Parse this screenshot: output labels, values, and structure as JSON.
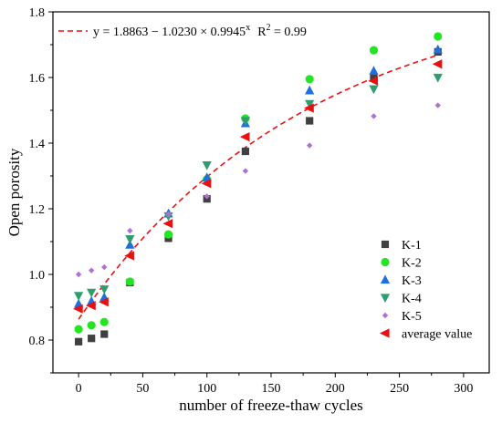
{
  "chart_data": {
    "type": "scatter",
    "xlabel": "number of freeze-thaw cycles",
    "ylabel": "Open porosity",
    "xlim": [
      -20,
      320
    ],
    "ylim": [
      0.7,
      1.8
    ],
    "xticks": [
      "0",
      "50",
      "100",
      "150",
      "200",
      "250",
      "300"
    ],
    "yticks": [
      "0.8",
      "1.0",
      "1.2",
      "1.4",
      "1.6",
      "1.8"
    ],
    "x": [
      0,
      10,
      20,
      40,
      70,
      100,
      130,
      180,
      230,
      280
    ],
    "series": [
      {
        "name": "K-1",
        "marker": "square",
        "color": "#404040",
        "values": [
          0.795,
          0.805,
          0.818,
          0.975,
          1.11,
          1.23,
          1.375,
          1.468,
          1.598,
          1.678
        ]
      },
      {
        "name": "K-2",
        "marker": "circle",
        "color": "#22e622",
        "values": [
          0.833,
          0.845,
          0.855,
          0.978,
          1.122,
          1.29,
          1.475,
          1.595,
          1.683,
          1.725
        ]
      },
      {
        "name": "K-3",
        "marker": "triangle-up",
        "color": "#1f6fdc",
        "values": [
          0.91,
          0.918,
          0.93,
          1.09,
          1.185,
          1.295,
          1.46,
          1.56,
          1.62,
          1.685
        ]
      },
      {
        "name": "K-4",
        "marker": "triangle-down",
        "color": "#2e9e6e",
        "values": [
          0.935,
          0.945,
          0.955,
          1.108,
          1.178,
          1.333,
          1.468,
          1.52,
          1.565,
          1.6
        ]
      },
      {
        "name": "K-5",
        "marker": "diamond",
        "color": "#b070d8",
        "values": [
          1.0,
          1.012,
          1.022,
          1.133,
          1.183,
          1.238,
          1.315,
          1.393,
          1.482,
          1.515
        ]
      },
      {
        "name": "average value",
        "marker": "triangle-left",
        "color": "#e81010",
        "values": [
          0.895,
          0.905,
          0.916,
          1.057,
          1.155,
          1.277,
          1.419,
          1.507,
          1.59,
          1.641
        ]
      }
    ],
    "fit": {
      "label": "y = 1.8863 − 1.0230 × 0.9945",
      "exponent": "x",
      "r2_label": "R",
      "r2_exp": "2",
      "r2_value": " = 0.99",
      "a": 1.8863,
      "b": 1.023,
      "c": 0.9945,
      "color": "#e81010",
      "style": "dashed"
    },
    "grid": false,
    "legend_position": "bottom-right"
  }
}
